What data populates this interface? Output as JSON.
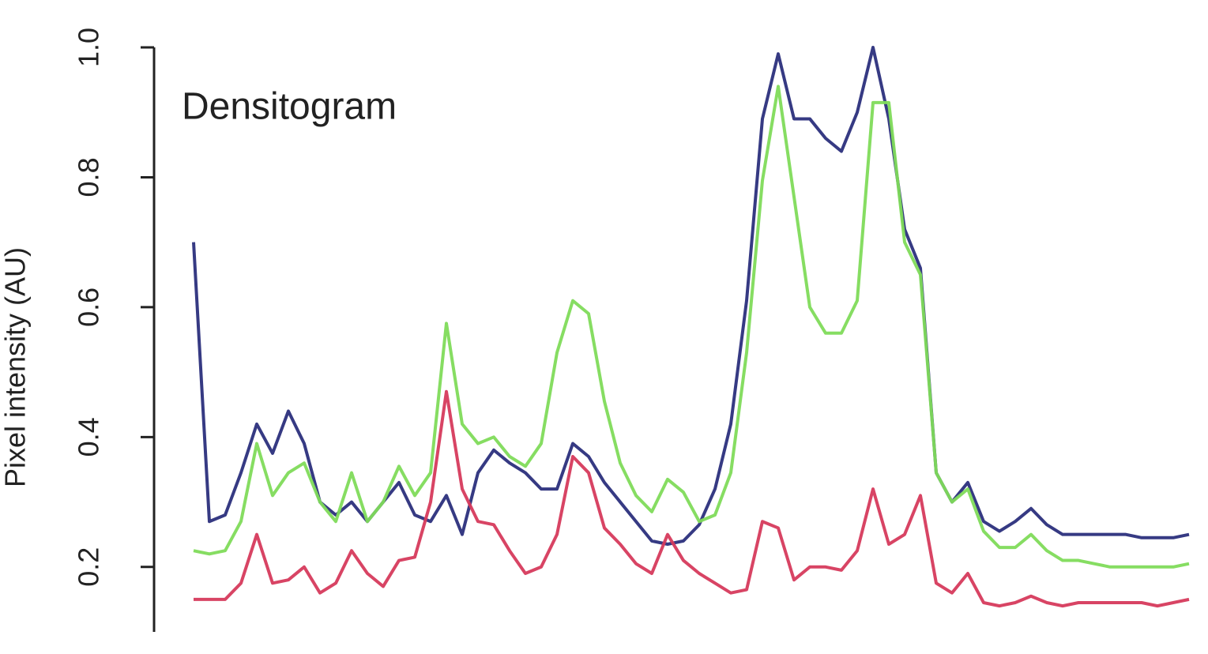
{
  "chart_data": {
    "type": "line",
    "annotation": "Densitogram",
    "y_label": "Pixel intensity (AU)",
    "ylim": [
      0.1,
      1.0
    ],
    "yticks": [
      0.2,
      0.4,
      0.6,
      0.8,
      {
        "value": 1,
        "label": "1.0"
      }
    ],
    "series": [
      {
        "color": "#2b2f7c",
        "values": [
          0.7,
          0.27,
          0.28,
          0.345,
          0.42,
          0.375,
          0.44,
          0.39,
          0.3,
          0.28,
          0.3,
          0.27,
          0.3,
          0.33,
          0.28,
          0.27,
          0.31,
          0.25,
          0.345,
          0.38,
          0.36,
          0.345,
          0.32,
          0.32,
          0.39,
          0.37,
          0.33,
          0.3,
          0.27,
          0.24,
          0.235,
          0.24,
          0.265,
          0.32,
          0.42,
          0.61,
          0.89,
          0.99,
          0.89,
          0.89,
          0.86,
          0.84,
          0.9,
          1.0,
          0.89,
          0.72,
          0.66,
          0.345,
          0.3,
          0.33,
          0.27,
          0.255,
          0.27,
          0.29,
          0.265,
          0.25,
          0.25,
          0.25,
          0.25,
          0.25,
          0.245,
          0.245,
          0.245,
          0.25
        ]
      },
      {
        "color": "#7fdb5a",
        "values": [
          0.225,
          0.22,
          0.225,
          0.27,
          0.39,
          0.31,
          0.345,
          0.36,
          0.3,
          0.27,
          0.345,
          0.27,
          0.3,
          0.355,
          0.31,
          0.345,
          0.575,
          0.42,
          0.39,
          0.4,
          0.37,
          0.355,
          0.39,
          0.53,
          0.61,
          0.59,
          0.455,
          0.36,
          0.31,
          0.285,
          0.335,
          0.315,
          0.27,
          0.28,
          0.345,
          0.53,
          0.795,
          0.94,
          0.77,
          0.6,
          0.56,
          0.56,
          0.61,
          0.915,
          0.915,
          0.7,
          0.65,
          0.345,
          0.3,
          0.32,
          0.255,
          0.23,
          0.23,
          0.25,
          0.225,
          0.21,
          0.21,
          0.205,
          0.2,
          0.2,
          0.2,
          0.2,
          0.2,
          0.205
        ]
      },
      {
        "color": "#d63a5c",
        "values": [
          0.15,
          0.15,
          0.15,
          0.175,
          0.25,
          0.175,
          0.18,
          0.2,
          0.16,
          0.175,
          0.225,
          0.19,
          0.17,
          0.21,
          0.215,
          0.3,
          0.47,
          0.32,
          0.27,
          0.265,
          0.225,
          0.19,
          0.2,
          0.25,
          0.37,
          0.345,
          0.26,
          0.235,
          0.205,
          0.19,
          0.25,
          0.21,
          0.19,
          0.175,
          0.16,
          0.165,
          0.27,
          0.26,
          0.18,
          0.2,
          0.2,
          0.195,
          0.225,
          0.32,
          0.235,
          0.25,
          0.31,
          0.175,
          0.16,
          0.19,
          0.145,
          0.14,
          0.145,
          0.155,
          0.145,
          0.14,
          0.145,
          0.145,
          0.145,
          0.145,
          0.145,
          0.14,
          0.145,
          0.15
        ]
      }
    ]
  }
}
